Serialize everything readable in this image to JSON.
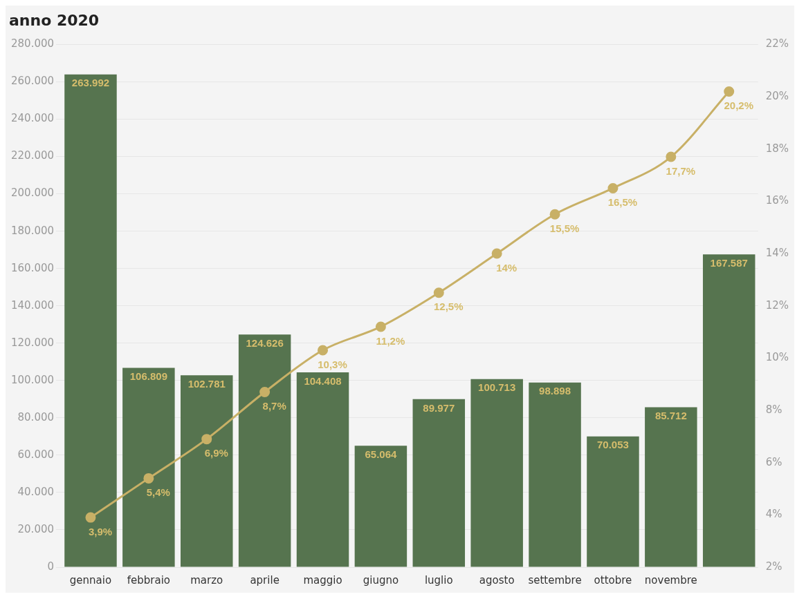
{
  "chart_data": {
    "type": "bar",
    "title": "anno 2020",
    "categories": [
      "gennaio",
      "febbraio",
      "marzo",
      "aprile",
      "maggio",
      "giugno",
      "luglio",
      "agosto",
      "settembre",
      "ottobre",
      "novembre",
      null
    ],
    "series": [
      {
        "color": "#56744f",
        "values": [
          263992,
          106809,
          102781,
          124626,
          104408,
          65064,
          89977,
          100713,
          98898,
          70053,
          85712,
          167587
        ],
        "value_labels": [
          "263.992",
          "106.809",
          "102.781",
          "124.626",
          "104.408",
          "65.064",
          "89.977",
          "100.713",
          "98.898",
          "70.053",
          "85.712",
          "167.587"
        ]
      },
      {
        "type": "line",
        "axis": "y2",
        "color": "#c8b066",
        "values": [
          3.9,
          5.4,
          6.9,
          8.7,
          10.3,
          11.2,
          12.5,
          14,
          15.5,
          16.5,
          17.7,
          20.2
        ],
        "value_labels": [
          "3,9%",
          "5,4%",
          "6,9%",
          "8,7%",
          "10,3%",
          "11,2%",
          "12,5%",
          "14%",
          "15,5%",
          "16,5%",
          "17,7%",
          "20,2%"
        ]
      }
    ],
    "ylim": [
      0,
      280000
    ],
    "yticks": [
      {
        "value": 0,
        "label": "0"
      },
      {
        "value": 20000,
        "label": "20.000"
      },
      {
        "value": 40000,
        "label": "40.000"
      },
      {
        "value": 60000,
        "label": "60.000"
      },
      {
        "value": 80000,
        "label": "80.000"
      },
      {
        "value": 100000,
        "label": "100.000"
      },
      {
        "value": 120000,
        "label": "120.000"
      },
      {
        "value": 140000,
        "label": "140.000"
      },
      {
        "value": 160000,
        "label": "160.000"
      },
      {
        "value": 180000,
        "label": "180.000"
      },
      {
        "value": 200000,
        "label": "200.000"
      },
      {
        "value": 220000,
        "label": "220.000"
      },
      {
        "value": 240000,
        "label": "240.000"
      },
      {
        "value": 260000,
        "label": "260.000"
      },
      {
        "value": 280000,
        "label": "280.000"
      }
    ],
    "y2lim": [
      2,
      22
    ],
    "y2ticks": [
      {
        "value": 2,
        "label": "2%"
      },
      {
        "value": 4,
        "label": "4%"
      },
      {
        "value": 6,
        "label": "6%"
      },
      {
        "value": 8,
        "label": "8%"
      },
      {
        "value": 10,
        "label": "10%"
      },
      {
        "value": 12,
        "label": "12%"
      },
      {
        "value": 14,
        "label": "14%"
      },
      {
        "value": 16,
        "label": "16%"
      },
      {
        "value": 18,
        "label": "18%"
      },
      {
        "value": 20,
        "label": "20%"
      },
      {
        "value": 22,
        "label": "22%"
      }
    ],
    "grid": "y",
    "legend": false,
    "marker": "circle"
  }
}
